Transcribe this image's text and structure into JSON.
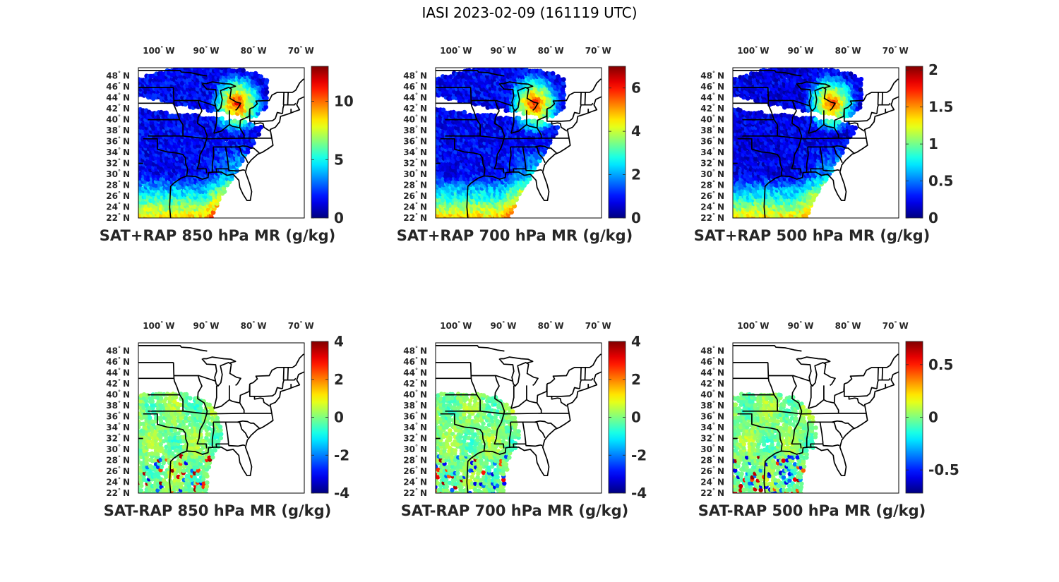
{
  "title": "IASI 2023-02-09 (161119 UTC)",
  "lon_ticks": [
    {
      "deg": "100",
      "hem": "W"
    },
    {
      "deg": "90",
      "hem": "W"
    },
    {
      "deg": "80",
      "hem": "W"
    },
    {
      "deg": "70",
      "hem": "W"
    }
  ],
  "lat_ticks": [
    {
      "deg": "48",
      "hem": "N"
    },
    {
      "deg": "46",
      "hem": "N"
    },
    {
      "deg": "44",
      "hem": "N"
    },
    {
      "deg": "42",
      "hem": "N"
    },
    {
      "deg": "40",
      "hem": "N"
    },
    {
      "deg": "38",
      "hem": "N"
    },
    {
      "deg": "36",
      "hem": "N"
    },
    {
      "deg": "34",
      "hem": "N"
    },
    {
      "deg": "32",
      "hem": "N"
    },
    {
      "deg": "30",
      "hem": "N"
    },
    {
      "deg": "28",
      "hem": "N"
    },
    {
      "deg": "26",
      "hem": "N"
    },
    {
      "deg": "24",
      "hem": "N"
    },
    {
      "deg": "22",
      "hem": "N"
    }
  ],
  "colormap": "jet",
  "panels": [
    {
      "caption": "SAT+RAP 850 hPa MR (g/kg)",
      "type": "sum",
      "clim": [
        0,
        13
      ],
      "colorbar_ticks": [
        "0",
        "5",
        "10"
      ],
      "colorbar_tick_values": [
        0,
        5,
        10
      ]
    },
    {
      "caption": "SAT+RAP 700 hPa MR (g/kg)",
      "type": "sum",
      "clim": [
        0,
        7
      ],
      "colorbar_ticks": [
        "0",
        "2",
        "4",
        "6"
      ],
      "colorbar_tick_values": [
        0,
        2,
        4,
        6
      ]
    },
    {
      "caption": "SAT+RAP 500 hPa MR (g/kg)",
      "type": "sum",
      "clim": [
        0,
        2.05
      ],
      "colorbar_ticks": [
        "0",
        "0.5",
        "1",
        "1.5",
        "2"
      ],
      "colorbar_tick_values": [
        0,
        0.5,
        1,
        1.5,
        2
      ]
    },
    {
      "caption": "SAT-RAP 850 hPa MR (g/kg)",
      "type": "diff",
      "clim": [
        -4,
        4
      ],
      "colorbar_ticks": [
        "-4",
        "-2",
        "0",
        "2",
        "4"
      ],
      "colorbar_tick_values": [
        -4,
        -2,
        0,
        2,
        4
      ]
    },
    {
      "caption": "SAT-RAP 700 hPa MR (g/kg)",
      "type": "diff",
      "clim": [
        -4,
        4
      ],
      "colorbar_ticks": [
        "-4",
        "-2",
        "0",
        "2",
        "4"
      ],
      "colorbar_tick_values": [
        -4,
        -2,
        0,
        2,
        4
      ]
    },
    {
      "caption": "SAT-RAP 500 hPa MR (g/kg)",
      "type": "diff",
      "clim": [
        -0.72,
        0.72
      ],
      "colorbar_ticks": [
        "-0.5",
        "0",
        "0.5"
      ],
      "colorbar_tick_values": [
        -0.5,
        0,
        0.5
      ]
    }
  ]
}
